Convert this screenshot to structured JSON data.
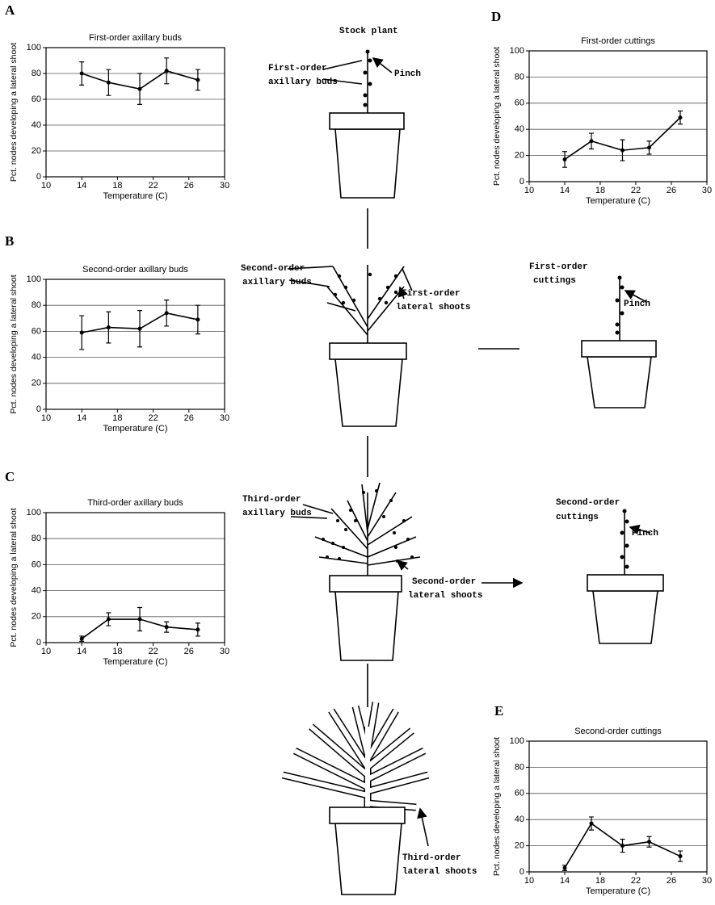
{
  "chart_data": [
    {
      "type": "line",
      "panel": "A",
      "title": "First-order axillary buds",
      "xlabel": "Temperature (C)",
      "ylabel": "Pct. nodes developing a lateral shoot",
      "x": [
        14,
        17,
        20.5,
        23.5,
        27
      ],
      "values": [
        80,
        73,
        68,
        82,
        75
      ],
      "errors": [
        9,
        10,
        12,
        10,
        8
      ],
      "color": "#000000",
      "xlim": [
        10,
        30
      ],
      "xticks": [
        10,
        14,
        18,
        22,
        26,
        30
      ],
      "ylim": [
        0,
        100
      ],
      "yticks": [
        0,
        20,
        40,
        60,
        80,
        100
      ],
      "grid": true
    },
    {
      "type": "line",
      "panel": "B",
      "title": "Second-order axillary buds",
      "xlabel": "Temperature (C)",
      "ylabel": "Pct. nodes developing a lateral shoot",
      "x": [
        14,
        17,
        20.5,
        23.5,
        27
      ],
      "values": [
        59,
        63,
        62,
        74,
        69
      ],
      "errors": [
        13,
        12,
        14,
        10,
        11
      ],
      "color": "#000000",
      "xlim": [
        10,
        30
      ],
      "xticks": [
        10,
        14,
        18,
        22,
        26,
        30
      ],
      "ylim": [
        0,
        100
      ],
      "yticks": [
        0,
        20,
        40,
        60,
        80,
        100
      ],
      "grid": true
    },
    {
      "type": "line",
      "panel": "C",
      "title": "Third-order axillary buds",
      "xlabel": "Temperature (C)",
      "ylabel": "Pct. nodes developing a lateral shoot",
      "x": [
        14,
        17,
        20.5,
        23.5,
        27
      ],
      "values": [
        3,
        18,
        18,
        12,
        10
      ],
      "errors": [
        2,
        5,
        9,
        4,
        5
      ],
      "color": "#000000",
      "xlim": [
        10,
        30
      ],
      "xticks": [
        10,
        14,
        18,
        22,
        26,
        30
      ],
      "ylim": [
        0,
        100
      ],
      "yticks": [
        0,
        20,
        40,
        60,
        80,
        100
      ],
      "grid": true
    },
    {
      "type": "line",
      "panel": "D",
      "title": "First-order cuttings",
      "xlabel": "Temperature (C)",
      "ylabel": "Pct. nodes developing a lateral shoot",
      "x": [
        14,
        17,
        20.5,
        23.5,
        27
      ],
      "values": [
        17,
        31,
        24,
        26,
        49
      ],
      "errors": [
        6,
        6,
        8,
        5,
        5
      ],
      "color": "#000000",
      "xlim": [
        10,
        30
      ],
      "xticks": [
        10,
        14,
        18,
        22,
        26,
        30
      ],
      "ylim": [
        0,
        100
      ],
      "yticks": [
        0,
        20,
        40,
        60,
        80,
        100
      ],
      "grid": true
    },
    {
      "type": "line",
      "panel": "E",
      "title": "Second-order cuttings",
      "xlabel": "Temperature (C)",
      "ylabel": "Pct. nodes developing a lateral shoot",
      "x": [
        14,
        17,
        20.5,
        23.5,
        27
      ],
      "values": [
        3,
        37,
        20,
        23,
        12
      ],
      "errors": [
        2,
        5,
        5,
        4,
        4
      ],
      "color": "#000000",
      "xlim": [
        10,
        30
      ],
      "xticks": [
        10,
        14,
        18,
        22,
        26,
        30
      ],
      "ylim": [
        0,
        100
      ],
      "yticks": [
        0,
        20,
        40,
        60,
        80,
        100
      ],
      "grid": true
    }
  ],
  "diagram": {
    "labels": [
      "Stock plant",
      "First-order",
      "axillary buds",
      "Pinch",
      "Second-order",
      "axillary buds",
      "First-order",
      "lateral shoots",
      "First-order",
      "cuttings",
      "Pinch",
      "Third-order",
      "axillary buds",
      "Second-order",
      "lateral shoots",
      "Second-order",
      "cuttings",
      "Pinch",
      "Third-order",
      "lateral shoots"
    ]
  }
}
